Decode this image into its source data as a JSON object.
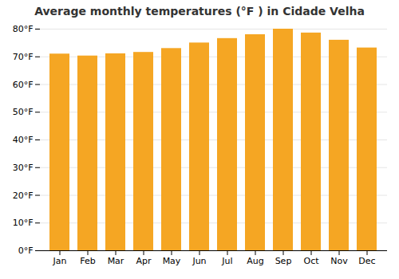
{
  "chart_data": {
    "type": "bar",
    "title": "Average monthly temperatures (°F ) in Cidade Velha",
    "categories": [
      "Jan",
      "Feb",
      "Mar",
      "Apr",
      "May",
      "Jun",
      "Jul",
      "Aug",
      "Sep",
      "Oct",
      "Nov",
      "Dec"
    ],
    "values": [
      71.0,
      70.3,
      71.1,
      71.6,
      73.0,
      75.0,
      76.6,
      78.0,
      80.0,
      78.6,
      76.0,
      73.2
    ],
    "color": "#F5A623",
    "ylim": [
      0,
      80
    ],
    "yticks": [
      {
        "value": 0,
        "label": "0°F"
      },
      {
        "value": 10,
        "label": "10°F"
      },
      {
        "value": 20,
        "label": "20°F"
      },
      {
        "value": 30,
        "label": "30°F"
      },
      {
        "value": 40,
        "label": "40°F"
      },
      {
        "value": 50,
        "label": "50°F"
      },
      {
        "value": 60,
        "label": "60°F"
      },
      {
        "value": 70,
        "label": "70°F"
      },
      {
        "value": 80,
        "label": "80°F"
      }
    ],
    "grid": true
  }
}
